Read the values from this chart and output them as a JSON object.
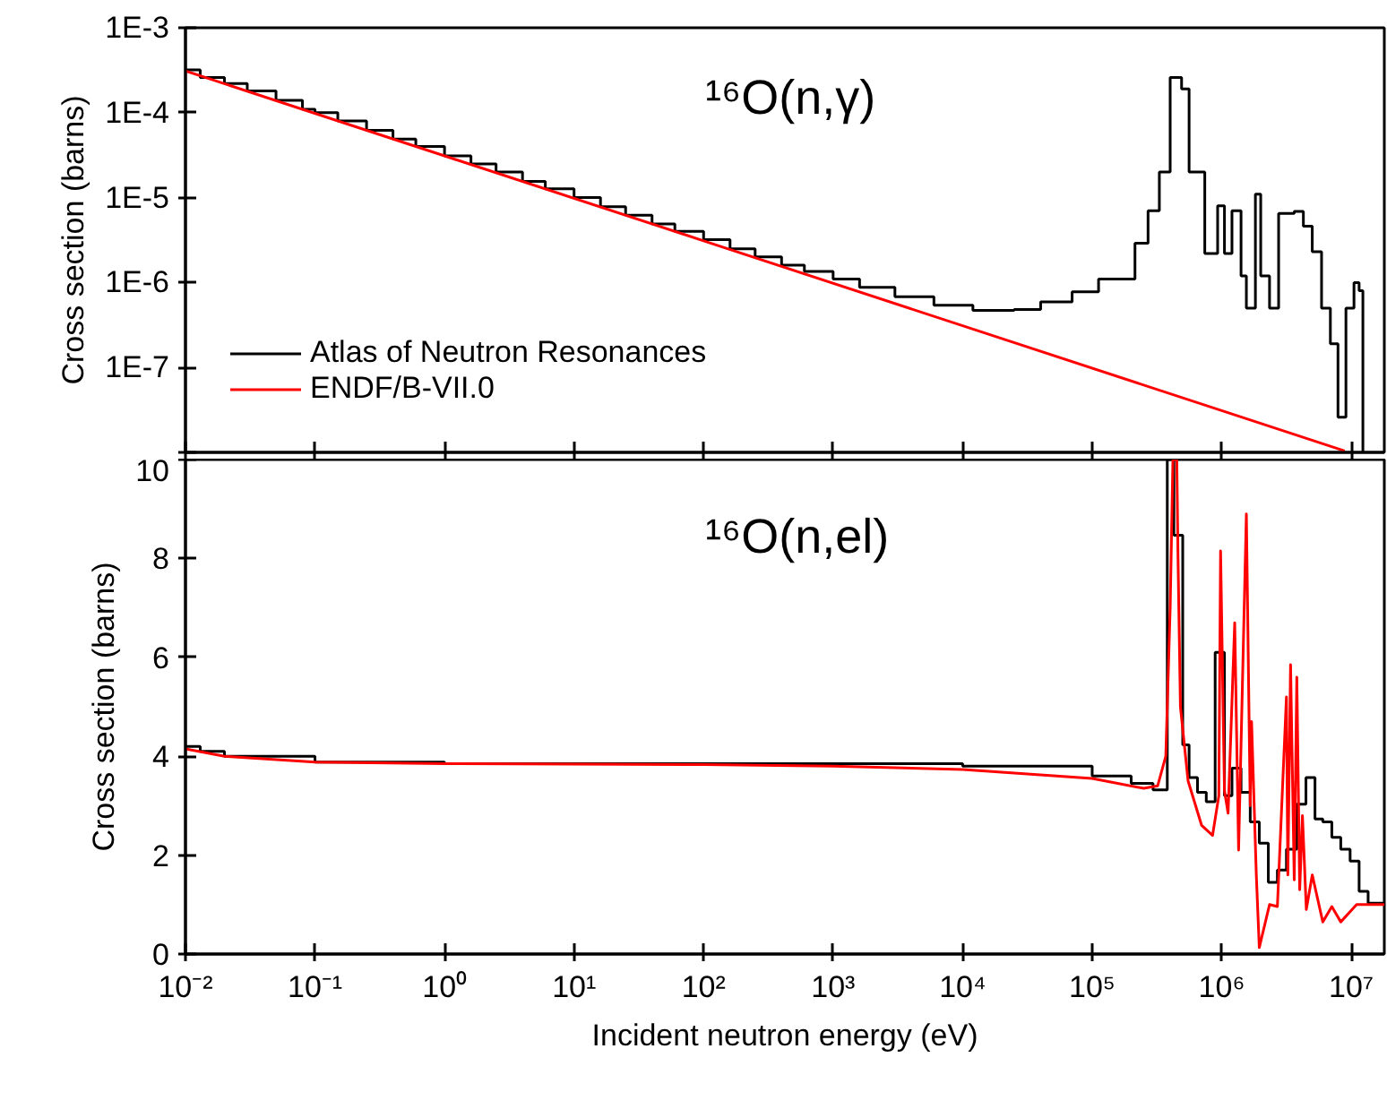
{
  "chart_data": [
    {
      "type": "line",
      "ylabel": "Cross section (barns)",
      "log": "xy",
      "tick_labels": "y",
      "legend": "bottom left",
      "annotations": [
        "¹⁶O(n,γ)"
      ],
      "xlim": [
        0.01,
        18000000
      ],
      "xticks": [
        {
          "value": 0.01,
          "label": null
        },
        {
          "value": 0.1,
          "label": null
        },
        {
          "value": 1,
          "label": null
        },
        {
          "value": 10,
          "label": null
        },
        {
          "value": 100,
          "label": null
        },
        {
          "value": 1000,
          "label": null
        },
        {
          "value": 10000,
          "label": null
        },
        {
          "value": 100000,
          "label": null
        },
        {
          "value": 1000000,
          "label": null
        },
        {
          "value": 10000000,
          "label": null
        }
      ],
      "ylim": [
        1e-08,
        0.001
      ],
      "yticks": [
        {
          "value": 0.001,
          "label": "1E-3"
        },
        {
          "value": 0.0001,
          "label": "1E-4"
        },
        {
          "value": 1e-05,
          "label": "1E-5"
        },
        {
          "value": 1e-06,
          "label": "1E-6"
        },
        {
          "value": 1e-07,
          "label": "1E-7"
        },
        {
          "value": 1e-08,
          "label": null
        }
      ],
      "series": [
        {
          "name": "Atlas of Neutron Resonances",
          "type": "step",
          "color": "#000000",
          "x": [
            0.01,
            0.013,
            0.02,
            0.03,
            0.05,
            0.08,
            0.1,
            0.15,
            0.25,
            0.4,
            0.6,
            1,
            1.6,
            2.5,
            4,
            6,
            10,
            16,
            25,
            40,
            60,
            100,
            160,
            250,
            400,
            600,
            1000,
            1600,
            3000,
            6000,
            12000,
            25000,
            40000,
            70000,
            112000,
            214000,
            270000,
            330000,
            400000,
            490000,
            560000,
            740000,
            930000,
            1050000,
            1200000,
            1410000,
            1550000,
            1820000,
            2000000,
            2340000,
            2750000,
            3630000,
            4270000,
            5000000,
            5900000,
            6900000,
            7900000,
            9100000,
            10500000,
            11500000,
            12300000
          ],
          "values": [
            0.00032,
            0.00026,
            0.00022,
            0.00018,
            0.00014,
            0.00011,
            0.0001,
            8e-05,
            6.2e-05,
            4.9e-05,
            4e-05,
            3.1e-05,
            2.5e-05,
            2e-05,
            1.55e-05,
            1.27e-05,
            1e-05,
            7.8e-06,
            6.2e-06,
            4.9e-06,
            4e-06,
            3.2e-06,
            2.5e-06,
            2e-06,
            1.6e-06,
            1.35e-06,
            1.1e-06,
            8.8e-07,
            6.8e-07,
            5.4e-07,
            4.7e-07,
            4.8e-07,
            5.9e-07,
            7.8e-07,
            1.1e-06,
            2.9e-06,
            7e-06,
            2e-05,
            0.00026,
            0.00019,
            2e-05,
            2.2e-06,
            8e-06,
            2.2e-06,
            7e-06,
            1.2e-06,
            5e-07,
            1.1e-05,
            1.2e-06,
            5e-07,
            6.5e-06,
            6.9e-06,
            4.6e-06,
            2.3e-06,
            5e-07,
            1.9e-07,
            2.6e-08,
            5e-07,
            1e-06,
            8e-07,
            1e-08
          ]
        },
        {
          "name": "ENDF/B-VII.0",
          "color": "#ff0000",
          "x": [
            0.01,
            1,
            100,
            10000,
            1000000,
            8900000
          ],
          "values": [
            0.00031,
            3.1e-05,
            3.1e-06,
            3.1e-07,
            3.1e-08,
            1.04e-08
          ]
        }
      ]
    },
    {
      "type": "line",
      "ylabel": "Cross section (barns)",
      "xlabel": "Incident neutron energy (eV)",
      "log": "x",
      "annotations": [
        "¹⁶O(n,el)"
      ],
      "xlim": [
        0.01,
        18000000
      ],
      "xticks": [
        {
          "value": 0.01,
          "label": "10⁻²"
        },
        {
          "value": 0.1,
          "label": "10⁻¹"
        },
        {
          "value": 1,
          "label": "10⁰"
        },
        {
          "value": 10,
          "label": "10¹"
        },
        {
          "value": 100,
          "label": "10²"
        },
        {
          "value": 1000,
          "label": "10³"
        },
        {
          "value": 10000,
          "label": "10⁴"
        },
        {
          "value": 100000,
          "label": "10⁵"
        },
        {
          "value": 1000000,
          "label": "10⁶"
        },
        {
          "value": 10000000,
          "label": "10⁷"
        }
      ],
      "ylim": [
        0,
        10
      ],
      "yticks": [
        0,
        2,
        4,
        6,
        8,
        10
      ],
      "series": [
        {
          "type": "step",
          "color": "#000000",
          "x": [
            0.01,
            0.013,
            0.02,
            0.1,
            1,
            1000,
            10000,
            100000,
            200000,
            295000,
            380000,
            427000,
            500000,
            560000,
            650000,
            760000,
            890000,
            1050000,
            1200000,
            1410000,
            1660000,
            1950000,
            2290000,
            2690000,
            3160000,
            3800000,
            4470000,
            5250000,
            6030000,
            7080000,
            8300000,
            9800000,
            11500000,
            13500000,
            18000000
          ],
          "values": [
            4.2,
            4.1,
            4.0,
            3.88,
            3.85,
            3.85,
            3.8,
            3.6,
            3.45,
            3.32,
            10,
            8.47,
            4.23,
            3.57,
            3.27,
            3.08,
            6.1,
            3.2,
            3.76,
            3.27,
            2.67,
            2.24,
            1.45,
            1.7,
            2.12,
            3.03,
            3.57,
            2.73,
            2.67,
            2.36,
            2.12,
            1.88,
            1.27,
            1.03,
            1.03
          ]
        },
        {
          "color": "#ff0000",
          "x": [
            0.01,
            0.02,
            0.1,
            1,
            100,
            1000,
            10000,
            100000,
            250000,
            320000,
            370000,
            400000,
            420000,
            450000,
            460000,
            480000,
            550000,
            700000,
            850000,
            950000,
            980000,
            1050000,
            1120000,
            1260000,
            1350000,
            1550000,
            1660000,
            1700000,
            1850000,
            1950000,
            2340000,
            2690000,
            3160000,
            3240000,
            3400000,
            3630000,
            3800000,
            4000000,
            4200000,
            4500000,
            5000000,
            6030000,
            7080000,
            8300000,
            11000000,
            14000000,
            18000000
          ],
          "values": [
            4.15,
            4.0,
            3.88,
            3.85,
            3.83,
            3.8,
            3.73,
            3.55,
            3.35,
            3.4,
            4,
            7,
            10,
            10,
            8,
            5,
            3.5,
            2.6,
            2.4,
            3.2,
            8.15,
            3.3,
            2.85,
            6.7,
            2.1,
            8.9,
            3.0,
            4.7,
            1.6,
            0.13,
            1.0,
            0.96,
            5.2,
            1.6,
            5.85,
            1.5,
            5.6,
            1.3,
            2.8,
            0.9,
            1.6,
            0.65,
            0.96,
            0.65,
            1.0,
            1.0,
            1.0
          ]
        }
      ]
    }
  ]
}
